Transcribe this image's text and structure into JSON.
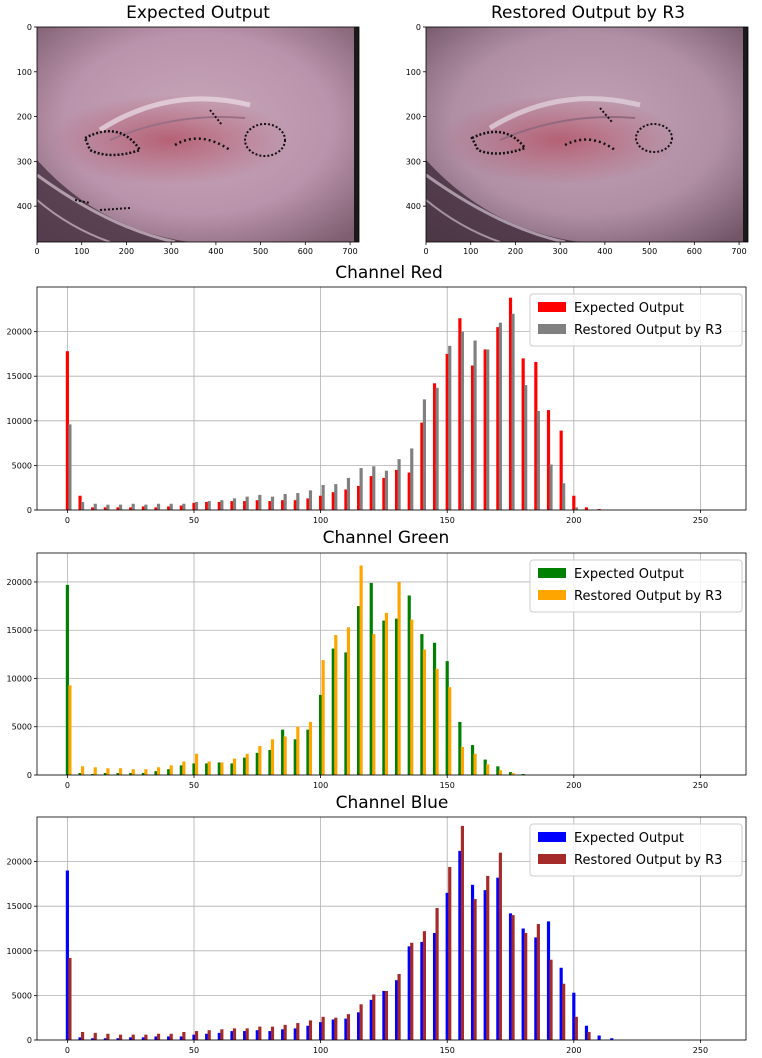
{
  "images": [
    {
      "title": "Expected Output",
      "xticks": [
        0,
        100,
        200,
        300,
        400,
        500,
        600,
        700
      ],
      "yticks": [
        0,
        100,
        200,
        300,
        400
      ],
      "xlim": [
        0,
        720
      ],
      "ylim": [
        480,
        0
      ]
    },
    {
      "title": "Restored Output by R3",
      "xticks": [
        0,
        100,
        200,
        300,
        400,
        500,
        600,
        700
      ],
      "yticks": [
        0,
        100,
        200,
        300,
        400
      ],
      "xlim": [
        0,
        720
      ],
      "ylim": [
        480,
        0
      ]
    }
  ],
  "chart_data": [
    {
      "type": "bar",
      "title": "Channel Red",
      "xlim": [
        -12,
        268
      ],
      "ylim": [
        0,
        25000
      ],
      "xticks": [
        0,
        50,
        100,
        150,
        200,
        250
      ],
      "yticks": [
        0,
        5000,
        10000,
        15000,
        20000
      ],
      "grid": true,
      "legend": "top-right",
      "colors": [
        "#ff0000",
        "#808080"
      ],
      "series": [
        {
          "name": "Expected Output",
          "x": [
            0,
            5,
            10,
            15,
            20,
            25,
            30,
            35,
            40,
            45,
            50,
            55,
            60,
            65,
            70,
            75,
            80,
            85,
            90,
            95,
            100,
            105,
            110,
            115,
            120,
            125,
            130,
            135,
            140,
            145,
            150,
            155,
            160,
            165,
            170,
            175,
            180,
            185,
            190,
            195,
            200,
            205,
            210
          ],
          "y": [
            17800,
            1600,
            300,
            300,
            300,
            300,
            400,
            300,
            400,
            500,
            800,
            900,
            900,
            1000,
            1000,
            1100,
            1000,
            1100,
            1100,
            1300,
            1600,
            2000,
            2300,
            2700,
            3800,
            3600,
            4500,
            4200,
            9800,
            14200,
            17500,
            21500,
            16200,
            18000,
            20500,
            23800,
            17000,
            16600,
            11200,
            8900,
            1600,
            300,
            100
          ]
        },
        {
          "name": "Restored Output by R3",
          "x": [
            1,
            6,
            11,
            16,
            21,
            26,
            31,
            36,
            41,
            46,
            51,
            56,
            61,
            66,
            71,
            76,
            81,
            86,
            91,
            96,
            101,
            106,
            111,
            116,
            121,
            126,
            131,
            136,
            141,
            146,
            151,
            156,
            161,
            166,
            171,
            176,
            181,
            186,
            191,
            196,
            201
          ],
          "y": [
            9600,
            900,
            700,
            600,
            600,
            700,
            600,
            700,
            700,
            700,
            900,
            1000,
            1100,
            1300,
            1500,
            1700,
            1500,
            1800,
            1900,
            2200,
            2800,
            2900,
            3600,
            4700,
            4900,
            4400,
            5700,
            6900,
            12400,
            13700,
            18400,
            20000,
            19000,
            18000,
            21000,
            22000,
            14000,
            11100,
            5100,
            3000,
            300
          ]
        }
      ]
    },
    {
      "type": "bar",
      "title": "Channel Green",
      "xlim": [
        -12,
        268
      ],
      "ylim": [
        0,
        23000
      ],
      "xticks": [
        0,
        50,
        100,
        150,
        200,
        250
      ],
      "yticks": [
        0,
        5000,
        10000,
        15000,
        20000
      ],
      "grid": true,
      "legend": "top-right",
      "colors": [
        "#008000",
        "#ffa500"
      ],
      "series": [
        {
          "name": "Expected Output",
          "x": [
            0,
            5,
            10,
            15,
            20,
            25,
            30,
            35,
            40,
            45,
            50,
            55,
            60,
            65,
            70,
            75,
            80,
            85,
            90,
            95,
            100,
            105,
            110,
            115,
            120,
            125,
            130,
            135,
            140,
            145,
            150,
            155,
            160,
            165,
            170,
            175,
            180
          ],
          "y": [
            19700,
            200,
            100,
            200,
            200,
            200,
            200,
            400,
            600,
            1000,
            1200,
            1200,
            1300,
            1200,
            1800,
            2300,
            2600,
            4700,
            3700,
            4700,
            8300,
            13100,
            12700,
            17500,
            19900,
            16000,
            16200,
            18600,
            14600,
            13700,
            11800,
            5500,
            3100,
            1600,
            900,
            300,
            100
          ]
        },
        {
          "name": "Restored Output by R3",
          "x": [
            1,
            6,
            11,
            16,
            21,
            26,
            31,
            36,
            41,
            46,
            51,
            56,
            61,
            66,
            71,
            76,
            81,
            86,
            91,
            96,
            101,
            106,
            111,
            116,
            121,
            126,
            131,
            136,
            141,
            146,
            151,
            156,
            161,
            166,
            171,
            176
          ],
          "y": [
            9300,
            900,
            800,
            700,
            700,
            600,
            600,
            800,
            1000,
            1400,
            2200,
            1400,
            1300,
            1700,
            2200,
            3000,
            3700,
            4000,
            5000,
            5500,
            11900,
            14500,
            15300,
            21700,
            14600,
            16800,
            20000,
            16100,
            13000,
            11000,
            9100,
            2900,
            2200,
            1100,
            500,
            200
          ]
        }
      ]
    },
    {
      "type": "bar",
      "title": "Channel Blue",
      "xlim": [
        -12,
        268
      ],
      "ylim": [
        0,
        25000
      ],
      "xticks": [
        0,
        50,
        100,
        150,
        200,
        250
      ],
      "yticks": [
        0,
        5000,
        10000,
        15000,
        20000
      ],
      "grid": true,
      "legend": "top-right",
      "colors": [
        "#0000ff",
        "#a52a2a"
      ],
      "series": [
        {
          "name": "Expected Output",
          "x": [
            0,
            5,
            10,
            15,
            20,
            25,
            30,
            35,
            40,
            45,
            50,
            55,
            60,
            65,
            70,
            75,
            80,
            85,
            90,
            95,
            100,
            105,
            110,
            115,
            120,
            125,
            130,
            135,
            140,
            145,
            150,
            155,
            160,
            165,
            170,
            175,
            180,
            185,
            190,
            195,
            200,
            205,
            210,
            215
          ],
          "y": [
            19000,
            300,
            200,
            200,
            200,
            300,
            300,
            400,
            400,
            400,
            600,
            700,
            800,
            1000,
            1000,
            1100,
            1000,
            1200,
            1300,
            1600,
            2000,
            2300,
            2400,
            3100,
            4500,
            5500,
            6700,
            10500,
            11000,
            12000,
            16500,
            21200,
            17400,
            16800,
            18200,
            14200,
            12500,
            11500,
            13300,
            8100,
            5300,
            1600,
            500,
            200
          ]
        },
        {
          "name": "Restored Output by R3",
          "x": [
            1,
            6,
            11,
            16,
            21,
            26,
            31,
            36,
            41,
            46,
            51,
            56,
            61,
            66,
            71,
            76,
            81,
            86,
            91,
            96,
            101,
            106,
            111,
            116,
            121,
            126,
            131,
            136,
            141,
            146,
            151,
            156,
            161,
            166,
            171,
            176,
            181,
            186,
            191,
            196,
            201,
            206
          ],
          "y": [
            9200,
            900,
            800,
            700,
            600,
            600,
            600,
            700,
            700,
            900,
            1000,
            1100,
            1200,
            1300,
            1300,
            1500,
            1500,
            1700,
            1900,
            2200,
            2600,
            2500,
            2900,
            4000,
            5100,
            5500,
            7400,
            10900,
            12200,
            14800,
            19400,
            24000,
            15800,
            18400,
            21000,
            14000,
            12000,
            13000,
            9000,
            6300,
            2600,
            900
          ]
        }
      ]
    }
  ]
}
